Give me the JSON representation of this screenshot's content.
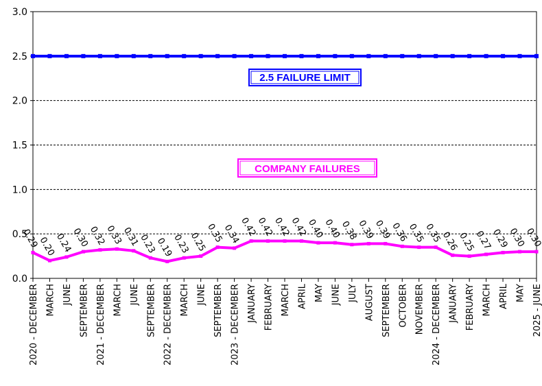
{
  "chart_data": {
    "type": "line",
    "categories": [
      "2020 - DECEMBER",
      "MARCH",
      "JUNE",
      "SEPTEMBER",
      "2021 - DECEMBER",
      "MARCH",
      "JUNE",
      "SEPTEMBER",
      "2022 - DECEMBER",
      "MARCH",
      "JUNE",
      "SEPTEMBER",
      "2023 - DECEMBER",
      "JANUARY",
      "FEBRUARY",
      "MARCH",
      "APRIL",
      "MAY",
      "JUNE",
      "JULY",
      "AUGUST",
      "SEPTEMBER",
      "OCTOBER",
      "NOVEMBER",
      "2024 - DECEMBER",
      "JANUARY",
      "FEBRUARY",
      "MARCH",
      "APRIL",
      "MAY",
      "2025 - JUNE"
    ],
    "series": [
      {
        "name": "COMPANY FAILURES",
        "color": "#FF00FF",
        "values": [
          0.29,
          0.2,
          0.24,
          0.3,
          0.32,
          0.33,
          0.31,
          0.23,
          0.19,
          0.23,
          0.25,
          0.35,
          0.34,
          0.42,
          0.42,
          0.42,
          0.42,
          0.4,
          0.4,
          0.38,
          0.39,
          0.39,
          0.36,
          0.35,
          0.35,
          0.26,
          0.25,
          0.27,
          0.29,
          0.3,
          0.3
        ],
        "data_labels": [
          "0.29",
          "0.20",
          "0.24",
          "0.30",
          "0.32",
          "0.33",
          "0.31",
          "0.23",
          "0.19",
          "0.23",
          "0.25",
          "0.35",
          "0.34",
          "0.42",
          "0.42",
          "0.42",
          "0.42",
          "0.40",
          "0.40",
          "0.38",
          "0.39",
          "0.39",
          "0.36",
          "0.35",
          "0.35",
          "0.26",
          "0.25",
          "0.27",
          "0.29",
          "0.30",
          "0.30"
        ]
      },
      {
        "name": "2.5 FAILURE LIMIT",
        "color": "#0000FF",
        "values": [
          2.5,
          2.5,
          2.5,
          2.5,
          2.5,
          2.5,
          2.5,
          2.5,
          2.5,
          2.5,
          2.5,
          2.5,
          2.5,
          2.5,
          2.5,
          2.5,
          2.5,
          2.5,
          2.5,
          2.5,
          2.5,
          2.5,
          2.5,
          2.5,
          2.5,
          2.5,
          2.5,
          2.5,
          2.5,
          2.5,
          2.5
        ]
      }
    ],
    "y_ticks": [
      "0.0",
      "0.5",
      "1.0",
      "1.5",
      "2.0",
      "2.5",
      "3.0"
    ],
    "ylim": [
      0,
      3.0
    ],
    "grid": "horizontal dashed",
    "annotations": {
      "limit_label": "2.5 FAILURE LIMIT",
      "company_label": "COMPANY FAILURES"
    }
  }
}
